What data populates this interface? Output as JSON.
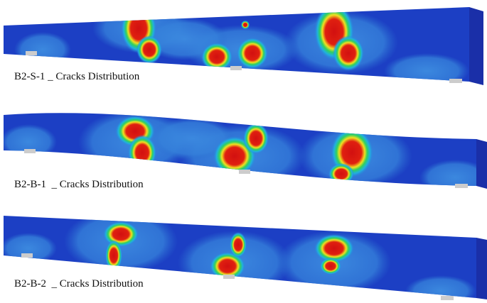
{
  "panels": [
    {
      "caption": "B2-S-1 _ Cracks Distribution"
    },
    {
      "caption": "B2-B-1  _ Cracks Distribution"
    },
    {
      "caption": "B2-B-2  _ Cracks Distribution"
    }
  ]
}
